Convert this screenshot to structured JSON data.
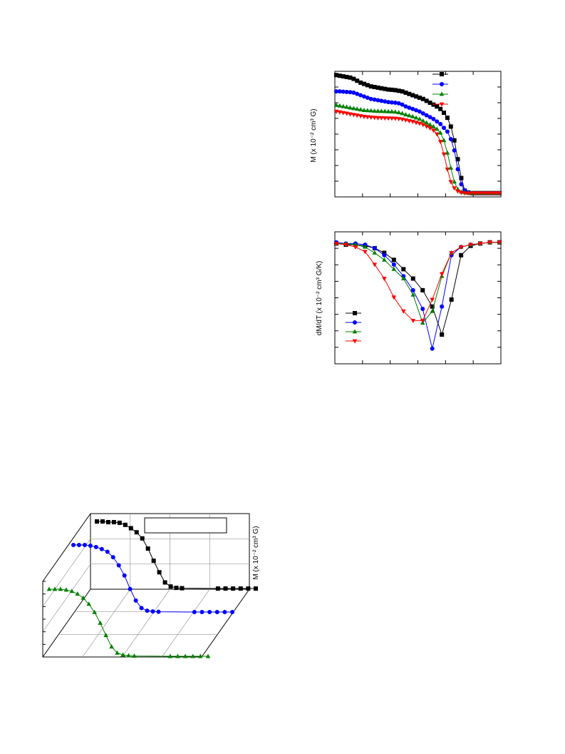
{
  "chart_data": [
    {
      "type": "line",
      "ylabel": "M (x 10⁻² cm³ G)",
      "series": [
        {
          "color": "#000000",
          "marker": "square",
          "values": [
            0.97,
            0.965,
            0.96,
            0.955,
            0.95,
            0.94,
            0.925,
            0.91,
            0.9,
            0.89,
            0.88,
            0.875,
            0.87,
            0.865,
            0.86,
            0.855,
            0.853,
            0.85,
            0.845,
            0.84,
            0.83,
            0.82,
            0.81,
            0.8,
            0.79,
            0.78,
            0.765,
            0.75,
            0.735,
            0.72,
            0.7,
            0.67,
            0.63,
            0.56,
            0.45,
            0.3,
            0.15,
            0.05,
            0.035,
            0.03,
            0.03,
            0.03,
            0.03,
            0.03,
            0.03,
            0.03,
            0.03,
            0.03
          ]
        },
        {
          "color": "#0000ff",
          "marker": "circle",
          "values": [
            0.84,
            0.84,
            0.838,
            0.836,
            0.834,
            0.83,
            0.82,
            0.81,
            0.8,
            0.79,
            0.78,
            0.775,
            0.77,
            0.765,
            0.76,
            0.755,
            0.752,
            0.75,
            0.745,
            0.735,
            0.72,
            0.71,
            0.7,
            0.69,
            0.68,
            0.665,
            0.65,
            0.635,
            0.62,
            0.6,
            0.58,
            0.55,
            0.52,
            0.46,
            0.37,
            0.22,
            0.1,
            0.05,
            0.035,
            0.03,
            0.03,
            0.03,
            0.03,
            0.03,
            0.03,
            0.03,
            0.03,
            0.03
          ]
        },
        {
          "color": "#008000",
          "marker": "triangle-up",
          "values": [
            0.73,
            0.725,
            0.72,
            0.715,
            0.71,
            0.705,
            0.7,
            0.695,
            0.69,
            0.688,
            0.686,
            0.684,
            0.683,
            0.682,
            0.681,
            0.68,
            0.679,
            0.677,
            0.672,
            0.665,
            0.655,
            0.648,
            0.64,
            0.63,
            0.62,
            0.605,
            0.59,
            0.575,
            0.56,
            0.54,
            0.51,
            0.45,
            0.35,
            0.23,
            0.12,
            0.06,
            0.04,
            0.035,
            0.03,
            0.03,
            0.03,
            0.03,
            0.03,
            0.03,
            0.03,
            0.03,
            0.03,
            0.03
          ]
        },
        {
          "color": "#ff0000",
          "marker": "triangle-down",
          "values": [
            0.68,
            0.675,
            0.67,
            0.665,
            0.66,
            0.655,
            0.65,
            0.645,
            0.64,
            0.637,
            0.634,
            0.632,
            0.63,
            0.629,
            0.628,
            0.627,
            0.626,
            0.625,
            0.622,
            0.618,
            0.612,
            0.606,
            0.6,
            0.592,
            0.585,
            0.575,
            0.562,
            0.548,
            0.53,
            0.5,
            0.44,
            0.34,
            0.22,
            0.12,
            0.07,
            0.045,
            0.035,
            0.03,
            0.03,
            0.03,
            0.03,
            0.03,
            0.03,
            0.03,
            0.03,
            0.03,
            0.03,
            0.03
          ]
        }
      ]
    },
    {
      "type": "line",
      "ylabel": "dM/dT (x 10⁻² cm³ G/K)",
      "series": [
        {
          "color": "#000000",
          "marker": "square",
          "values": [
            -0.02,
            -0.03,
            -0.03,
            -0.04,
            -0.06,
            -0.1,
            -0.16,
            -0.24,
            -0.32,
            -0.42,
            -0.56,
            -0.8,
            -0.5,
            -0.12,
            -0.04,
            -0.02,
            -0.01,
            -0.01
          ]
        },
        {
          "color": "#0000ff",
          "marker": "circle",
          "values": [
            -0.01,
            -0.02,
            -0.02,
            -0.03,
            -0.06,
            -0.12,
            -0.2,
            -0.3,
            -0.42,
            -0.58,
            -0.92,
            -0.56,
            -0.12,
            -0.05,
            -0.03,
            -0.02,
            -0.01,
            -0.01
          ]
        },
        {
          "color": "#008000",
          "marker": "triangle-up",
          "values": [
            -0.02,
            -0.02,
            -0.03,
            -0.05,
            -0.1,
            -0.16,
            -0.24,
            -0.32,
            -0.46,
            -0.7,
            -0.6,
            -0.3,
            -0.1,
            -0.05,
            -0.03,
            -0.02,
            -0.01,
            -0.01
          ]
        },
        {
          "color": "#ff0000",
          "marker": "triangle-down",
          "values": [
            -0.02,
            -0.03,
            -0.05,
            -0.09,
            -0.2,
            -0.32,
            -0.48,
            -0.6,
            -0.68,
            -0.68,
            -0.5,
            -0.28,
            -0.1,
            -0.05,
            -0.03,
            -0.02,
            -0.01,
            -0.01
          ]
        }
      ]
    },
    {
      "type": "line",
      "ylabel": "M (x 10⁻² cm³ G)",
      "series": [
        {
          "color": "#000000",
          "marker": "square",
          "values": [
            1.0,
            1.0,
            0.99,
            0.99,
            0.98,
            0.95,
            0.9,
            0.84,
            0.75,
            0.6,
            0.42,
            0.25,
            0.1,
            0.04,
            0.02,
            0.015,
            0.01,
            0.01,
            0.01,
            0.01,
            0.01,
            0.01
          ]
        },
        {
          "color": "#0000ff",
          "marker": "circle",
          "values": [
            1.0,
            1.0,
            1.0,
            0.99,
            0.97,
            0.94,
            0.9,
            0.82,
            0.7,
            0.55,
            0.35,
            0.18,
            0.07,
            0.03,
            0.02,
            0.015,
            0.01,
            0.01,
            0.01,
            0.01,
            0.01,
            0.01
          ]
        },
        {
          "color": "#008000",
          "marker": "triangle-up",
          "values": [
            1.0,
            1.0,
            1.0,
            0.99,
            0.97,
            0.93,
            0.87,
            0.78,
            0.66,
            0.5,
            0.32,
            0.15,
            0.06,
            0.03,
            0.02,
            0.015,
            0.01,
            0.01,
            0.01,
            0.01,
            0.01,
            0.01
          ]
        }
      ]
    }
  ]
}
